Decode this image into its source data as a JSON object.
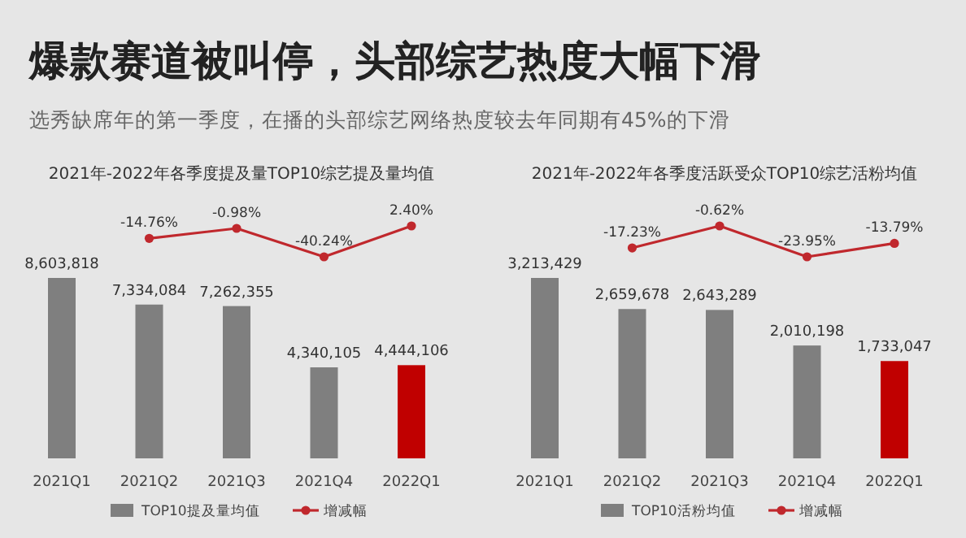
{
  "chart_data": [
    {
      "type": "other",
      "title": "爆款赛道被叫停，头部综艺热度大幅下滑",
      "subtitle": "选秀缺席年的第一季度，在播的头部综艺网络热度较去年同期有45%的下滑"
    },
    {
      "type": "bar",
      "categories": [
        null,
        null,
        null,
        null,
        null
      ],
      "legend": "bottom",
      "series": [
        {
          "name": "TOP10提及量均值",
          "color": "#7f7f7f",
          "colors": [
            "#7f7f7f",
            "#7f7f7f",
            "#7f7f7f",
            "#7f7f7f",
            "#c00000"
          ],
          "values": [
            8603818,
            7334084,
            7262355,
            4340105,
            4444106
          ],
          "value_labels": [
            "8,603,818",
            "7,334,084",
            "7,262,355",
            "4,340,105",
            "4,444,106"
          ]
        }
      ]
    },
    {
      "type": "line",
      "title": "2021年-2022年各季度提及量TOP10综艺提及量均值",
      "categories": [
        "2021Q1",
        "2021Q2",
        "2021Q3",
        "2021Q4",
        "2022Q1"
      ],
      "tick_labels": "x",
      "legend": "bottom",
      "series": [
        {
          "name": "增减幅",
          "color": "#c0282d",
          "marker": "circle",
          "values": [
            null,
            -14.76,
            -0.98,
            -40.24,
            2.4
          ],
          "value_labels": [
            null,
            "-14.76%",
            "-0.98%",
            "-40.24%",
            "2.40%"
          ]
        }
      ]
    },
    {
      "type": "bar",
      "categories": [
        null,
        null,
        null,
        null,
        null
      ],
      "legend": "bottom",
      "series": [
        {
          "name": "TOP10活粉均值",
          "color": "#7f7f7f",
          "colors": [
            "#7f7f7f",
            "#7f7f7f",
            "#7f7f7f",
            "#7f7f7f",
            "#c00000"
          ],
          "values": [
            3213429,
            2659678,
            2643289,
            2010198,
            1733047
          ],
          "value_labels": [
            "3,213,429",
            "2,659,678",
            "2,643,289",
            "2,010,198",
            "1,733,047"
          ]
        }
      ]
    },
    {
      "type": "line",
      "title": "2021年-2022年各季度活跃受众TOP10综艺活粉均值",
      "categories": [
        "2021Q1",
        "2021Q2",
        "2021Q3",
        "2021Q4",
        "2022Q1"
      ],
      "tick_labels": "x",
      "legend": "bottom",
      "series": [
        {
          "name": "增减幅",
          "color": "#c0282d",
          "marker": "circle",
          "values": [
            null,
            -17.23,
            -0.62,
            -23.95,
            -13.79
          ],
          "value_labels": [
            null,
            "-17.23%",
            "-0.62%",
            "-23.95%",
            "-13.79%"
          ]
        }
      ]
    }
  ]
}
